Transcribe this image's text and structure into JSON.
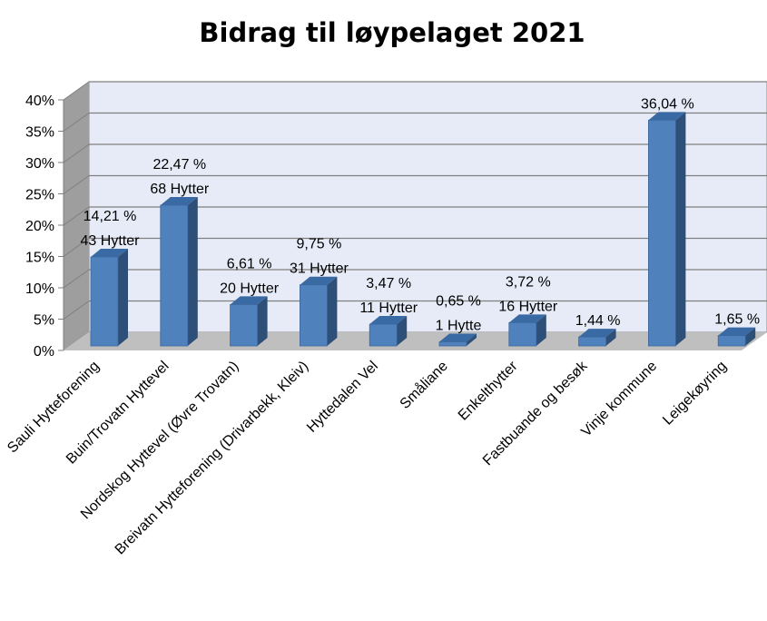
{
  "chart_data": {
    "type": "bar",
    "title": "Bidrag til løypelaget 2021",
    "xlabel": "",
    "ylabel": "",
    "ylim": [
      0,
      40
    ],
    "yticks": [
      "0%",
      "5%",
      "10%",
      "15%",
      "20%",
      "25%",
      "30%",
      "35%",
      "40%"
    ],
    "grid": true,
    "legend": "none",
    "three_d": true,
    "colors": {
      "bar_front": "#4f81bd",
      "bar_side": "#2e4f78",
      "bar_top": "#3a6aa3",
      "wall": "#e6ebf7",
      "wall_side": "#9e9e9e",
      "floor": "#bfbfbf",
      "gridline": "#7f7f7f"
    },
    "categories": [
      "Sauli Hytteforening",
      "Buin/Trovatn Hyttevel",
      "Nordskog Hyttevel (Øvre Trovatn)",
      "Breivatn Hytteforening (Drivarbekk, Kleiv)",
      "Hyttedalen Vel",
      "Småliane",
      "Enkelthytter",
      "Fastbuande og besøk",
      "Vinje kommune",
      "Leigekøyring"
    ],
    "values": [
      14.21,
      22.47,
      6.61,
      9.75,
      3.47,
      0.65,
      3.72,
      1.44,
      36.04,
      1.65
    ],
    "value_labels": [
      "14,21 %",
      "22,47 %",
      "6,61 %",
      "9,75 %",
      "3,47 %",
      "0,65 %",
      "3,72 %",
      "1,44 %",
      "36,04 %",
      "1,65 %"
    ],
    "count_labels": [
      "43 Hytter",
      "68 Hytter",
      "20 Hytter",
      "31 Hytter",
      "11 Hytter",
      "1 Hytte",
      "16 Hytter",
      "",
      "",
      ""
    ]
  }
}
